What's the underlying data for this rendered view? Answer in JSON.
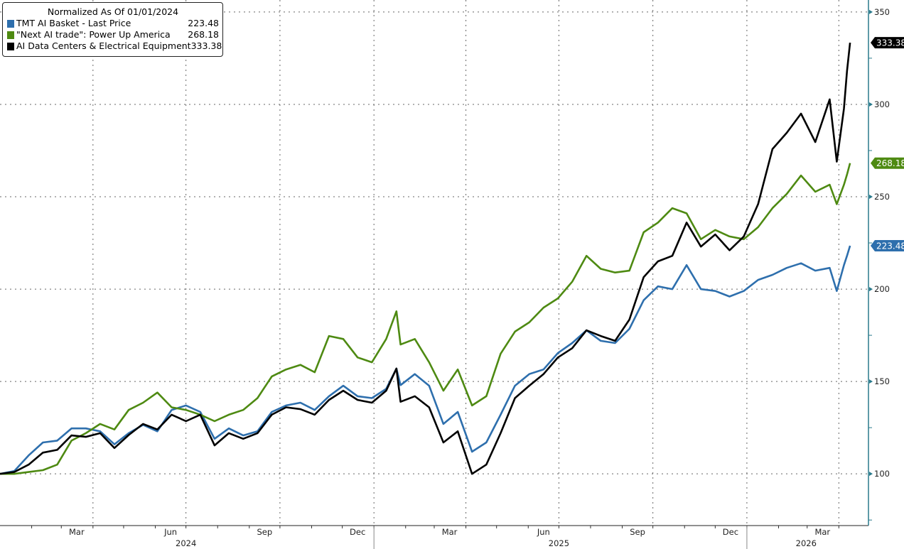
{
  "legend": {
    "title": "Normalized As Of 01/01/2024",
    "items": [
      {
        "name": "TMT AI Basket - Last Price",
        "value": "223.48",
        "color": "#2e6fad"
      },
      {
        "name": "\"Next AI trade\": Power Up America",
        "value": "268.18",
        "color": "#4e8a12"
      },
      {
        "name": "AI Data Centers & Electrical Equipment",
        "value": "333.38",
        "color": "#000000"
      }
    ]
  },
  "chart_data": {
    "type": "line",
    "title": "",
    "xlabel": "",
    "ylabel": "",
    "xlim": [
      "2024-01-01",
      "2026-04-30"
    ],
    "ylim": [
      72,
      356.5
    ],
    "y_axis_side": "right",
    "yticks": [
      100,
      150,
      200,
      250,
      300,
      350
    ],
    "y_minor_step": 25,
    "x_month_labels": [
      {
        "label": "Mar",
        "date": "2024-03-16"
      },
      {
        "label": "Jun",
        "date": "2024-06-16"
      },
      {
        "label": "Sep",
        "date": "2024-09-16"
      },
      {
        "label": "Dec",
        "date": "2024-12-16"
      },
      {
        "label": "Mar",
        "date": "2025-03-16"
      },
      {
        "label": "Jun",
        "date": "2025-06-16"
      },
      {
        "label": "Sep",
        "date": "2025-09-16"
      },
      {
        "label": "Dec",
        "date": "2025-12-16"
      },
      {
        "label": "Mar",
        "date": "2026-03-16"
      }
    ],
    "x_year_labels": [
      {
        "label": "2024",
        "date": "2024-07-01"
      },
      {
        "label": "2025",
        "date": "2025-07-01"
      },
      {
        "label": "2026",
        "date": "2026-02-28"
      }
    ],
    "grid": true,
    "legend_position": "top-left",
    "dates": [
      "2024-01-01",
      "2024-01-15",
      "2024-01-29",
      "2024-02-12",
      "2024-02-26",
      "2024-03-11",
      "2024-03-25",
      "2024-04-08",
      "2024-04-22",
      "2024-05-06",
      "2024-05-20",
      "2024-06-03",
      "2024-06-17",
      "2024-07-01",
      "2024-07-15",
      "2024-07-29",
      "2024-08-12",
      "2024-08-26",
      "2024-09-09",
      "2024-09-23",
      "2024-10-07",
      "2024-10-21",
      "2024-11-04",
      "2024-11-18",
      "2024-12-02",
      "2024-12-16",
      "2024-12-30",
      "2025-01-13",
      "2025-01-23",
      "2025-01-27",
      "2025-02-10",
      "2025-02-24",
      "2025-03-10",
      "2025-03-24",
      "2025-04-07",
      "2025-04-21",
      "2025-05-05",
      "2025-05-19",
      "2025-06-02",
      "2025-06-16",
      "2025-06-30",
      "2025-07-14",
      "2025-07-28",
      "2025-08-11",
      "2025-08-25",
      "2025-09-08",
      "2025-09-22",
      "2025-10-06",
      "2025-10-20",
      "2025-11-03",
      "2025-11-17",
      "2025-12-01",
      "2025-12-15",
      "2025-12-29",
      "2026-01-12",
      "2026-01-26",
      "2026-02-09",
      "2026-02-23",
      "2026-03-09",
      "2026-03-23",
      "2026-03-30",
      "2026-04-06",
      "2026-04-09",
      "2026-04-12"
    ],
    "series": [
      {
        "name": "TMT AI Basket - Last Price",
        "color": "#2e6fad",
        "last": "223.48",
        "values": [
          100,
          101.5,
          110,
          117,
          118,
          124.6,
          124.6,
          123,
          116,
          122,
          126.5,
          123,
          134.6,
          137,
          133.5,
          119,
          124.6,
          120.8,
          123,
          133.5,
          137,
          138.5,
          134.6,
          142,
          147.7,
          142,
          141,
          146,
          157,
          148,
          154,
          147.7,
          127,
          133.5,
          112,
          117,
          132,
          147.7,
          154,
          156.5,
          165.4,
          170.8,
          177.7,
          172,
          170.8,
          178.5,
          194,
          201.5,
          200,
          213,
          200,
          199,
          196,
          199,
          205,
          207.7,
          211.5,
          214,
          210,
          211.5,
          199,
          213,
          218,
          223.48
        ]
      },
      {
        "name": "\"Next AI trade\": Power Up America",
        "color": "#4e8a12",
        "last": "268.18",
        "values": [
          100,
          100,
          101,
          102,
          105,
          118,
          122,
          127,
          124,
          134.6,
          138.5,
          144,
          136,
          134.6,
          132,
          128.5,
          132,
          134.6,
          141,
          152.7,
          156.5,
          159,
          155,
          174.6,
          173,
          163,
          160.4,
          173,
          188,
          170,
          173,
          160.4,
          145,
          156.5,
          137,
          142,
          165,
          177,
          182,
          190,
          195,
          204,
          218,
          211,
          209,
          210,
          230.8,
          236,
          243.8,
          241,
          227,
          232,
          228.5,
          227,
          233.5,
          243.8,
          251.5,
          261.5,
          252.7,
          256.5,
          246,
          256.5,
          262,
          268.18
        ]
      },
      {
        "name": "AI Data Centers & Electrical Equipment",
        "color": "#000000",
        "last": "333.38",
        "values": [
          100,
          101,
          105,
          111.5,
          113,
          120.8,
          120,
          122,
          114,
          121,
          127,
          124,
          132,
          128.5,
          132,
          115.4,
          122,
          119,
          122,
          132,
          136,
          135,
          132,
          140,
          145,
          140,
          138.5,
          145,
          157,
          139,
          142,
          136,
          117,
          123,
          100,
          105,
          122,
          141,
          147.7,
          154,
          163,
          168,
          177.7,
          174.6,
          172,
          183.5,
          206.5,
          215,
          218,
          236,
          223,
          229.6,
          221,
          228.5,
          246,
          275.8,
          284.6,
          295,
          279.6,
          302.7,
          269,
          297.7,
          318,
          333.38
        ]
      }
    ]
  }
}
